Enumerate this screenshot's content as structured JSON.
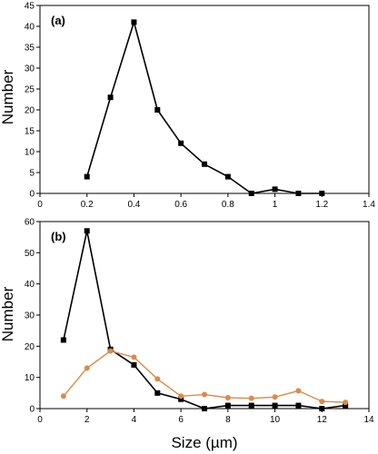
{
  "ylabel": "Number",
  "xlabel": "Size (µm)",
  "chart_data": [
    {
      "type": "line",
      "panel_label": "(a)",
      "xlim": [
        0,
        1.4
      ],
      "ylim": [
        0,
        45
      ],
      "x_ticks": [
        "0",
        "0.2",
        "0.4",
        "0.6",
        "0.8",
        "1",
        "1.2",
        "1.4"
      ],
      "y_ticks": [
        "0",
        "5",
        "10",
        "15",
        "20",
        "25",
        "30",
        "35",
        "40",
        "45"
      ],
      "ylabel": "Number",
      "xlabel": "",
      "series": [
        {
          "color": "#000000",
          "marker": "square",
          "x": [
            0.2,
            0.3,
            0.4,
            0.5,
            0.6,
            0.7,
            0.8,
            0.9,
            1.0,
            1.1,
            1.2
          ],
          "y": [
            4,
            23,
            41,
            20,
            12,
            7,
            4,
            0,
            1,
            0,
            0
          ]
        }
      ]
    },
    {
      "type": "line",
      "panel_label": "(b)",
      "xlim": [
        0,
        14
      ],
      "ylim": [
        0,
        60
      ],
      "x_ticks": [
        "0",
        "2",
        "4",
        "6",
        "8",
        "10",
        "12",
        "14"
      ],
      "y_ticks": [
        "0",
        "10",
        "20",
        "30",
        "40",
        "50",
        "60"
      ],
      "ylabel": "Number",
      "xlabel": "Size (µm)",
      "series": [
        {
          "color": "#000000",
          "marker": "square",
          "x": [
            1,
            2,
            3,
            4,
            5,
            6,
            7,
            8,
            9,
            10,
            11,
            12,
            13
          ],
          "y": [
            22,
            57,
            19,
            14,
            5,
            3,
            0,
            1,
            1,
            1,
            1,
            0,
            1
          ]
        },
        {
          "color": "#d98b4a",
          "marker": "circle",
          "x": [
            1,
            2,
            3,
            4,
            5,
            6,
            7,
            8,
            9,
            10,
            11,
            12,
            13
          ],
          "y": [
            4,
            13,
            18.5,
            16.5,
            9.5,
            4,
            4.5,
            3.5,
            3.3,
            3.7,
            5.7,
            2.3,
            2
          ]
        }
      ]
    }
  ]
}
